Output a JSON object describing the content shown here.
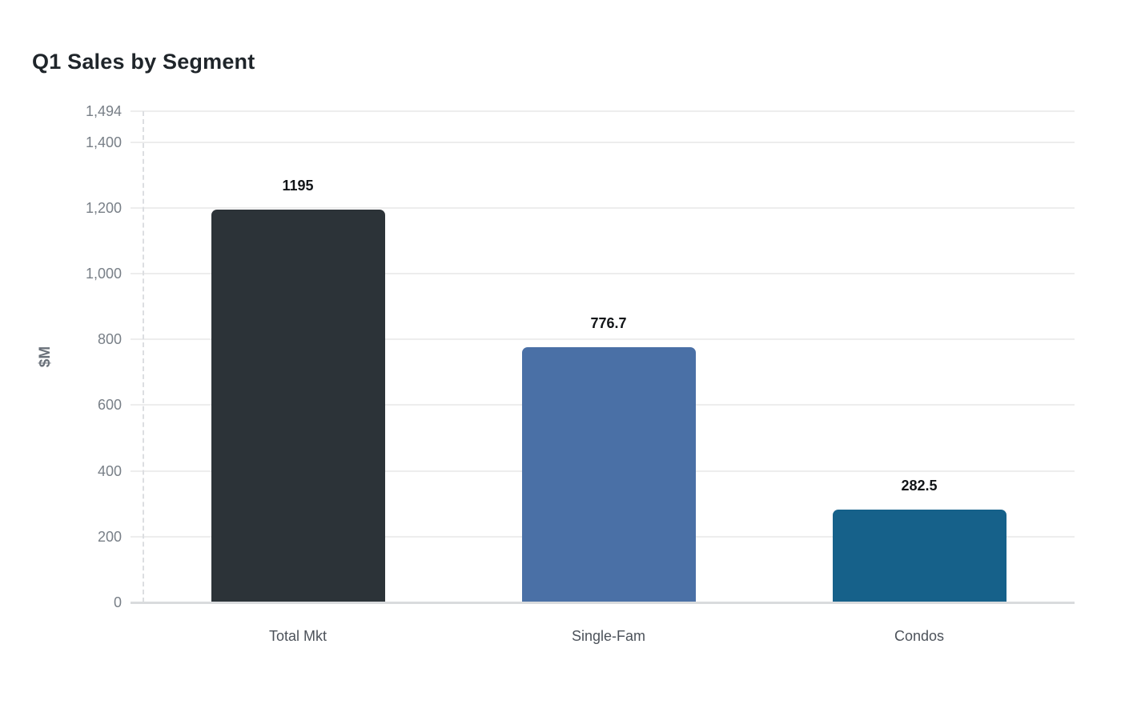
{
  "chart_data": {
    "type": "bar",
    "title": "Q1 Sales by Segment",
    "xlabel": "",
    "ylabel": "$M",
    "categories": [
      "Total Mkt",
      "Single-Fam",
      "Condos"
    ],
    "values": [
      1195,
      776.7,
      282.5
    ],
    "value_labels": [
      "1195",
      "776.7",
      "282.5"
    ],
    "bar_colors": [
      "#2c3338",
      "#4a70a6",
      "#16618a"
    ],
    "ylim": [
      0,
      1494
    ],
    "yticks": [
      {
        "value": 0,
        "label": "0"
      },
      {
        "value": 200,
        "label": "200"
      },
      {
        "value": 400,
        "label": "400"
      },
      {
        "value": 600,
        "label": "600"
      },
      {
        "value": 800,
        "label": "800"
      },
      {
        "value": 1000,
        "label": "1,000"
      },
      {
        "value": 1200,
        "label": "1,200"
      },
      {
        "value": 1400,
        "label": "1,400"
      },
      {
        "value": 1494,
        "label": "1,494"
      }
    ],
    "grid": true,
    "legend": false,
    "colors": {
      "title": "#1f252a",
      "grid_line": "#ededed",
      "axis_base_line": "#d9dbdd",
      "y_tick_label": "#787f87",
      "x_tick_label": "#4c525a",
      "value_label": "#121518",
      "y_axis_title": "#6a717a",
      "background": "#ffffff"
    }
  }
}
